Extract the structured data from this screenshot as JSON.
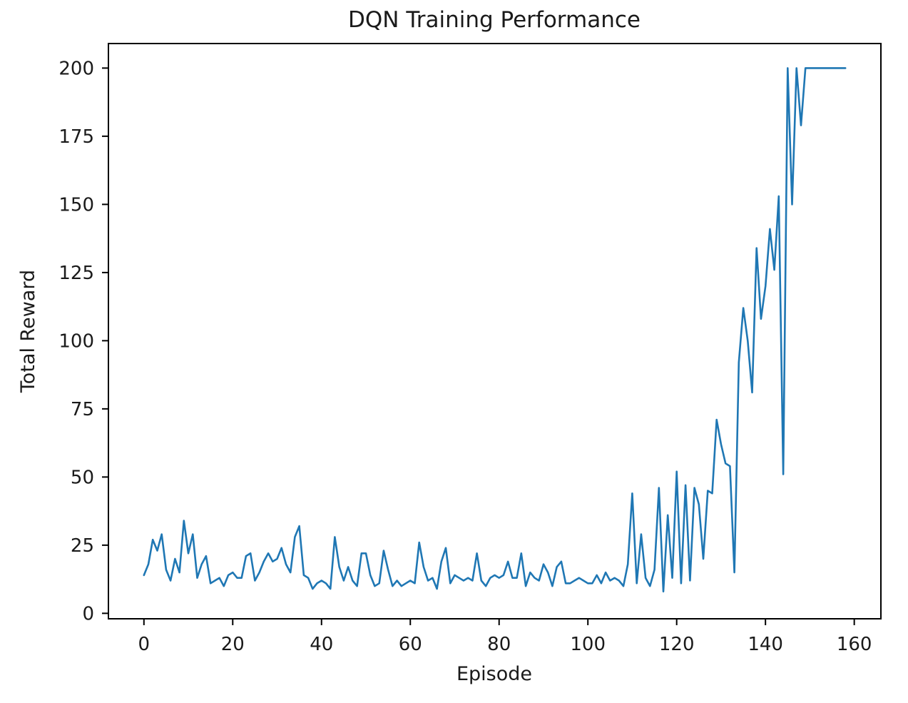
{
  "chart_data": {
    "type": "line",
    "title": "DQN Training Performance",
    "xlabel": "Episode",
    "ylabel": "Total Reward",
    "xlim": [
      -8,
      166
    ],
    "ylim": [
      -2,
      209
    ],
    "xticks": [
      0,
      20,
      40,
      60,
      80,
      100,
      120,
      140,
      160
    ],
    "yticks": [
      0,
      25,
      50,
      75,
      100,
      125,
      150,
      175,
      200
    ],
    "grid": false,
    "legend": "none",
    "series": [
      {
        "color": "#1f77b4",
        "x": [
          0,
          1,
          2,
          3,
          4,
          5,
          6,
          7,
          8,
          9,
          10,
          11,
          12,
          13,
          14,
          15,
          16,
          17,
          18,
          19,
          20,
          21,
          22,
          23,
          24,
          25,
          26,
          27,
          28,
          29,
          30,
          31,
          32,
          33,
          34,
          35,
          36,
          37,
          38,
          39,
          40,
          41,
          42,
          43,
          44,
          45,
          46,
          47,
          48,
          49,
          50,
          51,
          52,
          53,
          54,
          55,
          56,
          57,
          58,
          59,
          60,
          61,
          62,
          63,
          64,
          65,
          66,
          67,
          68,
          69,
          70,
          71,
          72,
          73,
          74,
          75,
          76,
          77,
          78,
          79,
          80,
          81,
          82,
          83,
          84,
          85,
          86,
          87,
          88,
          89,
          90,
          91,
          92,
          93,
          94,
          95,
          96,
          97,
          98,
          99,
          100,
          101,
          102,
          103,
          104,
          105,
          106,
          107,
          108,
          109,
          110,
          111,
          112,
          113,
          114,
          115,
          116,
          117,
          118,
          119,
          120,
          121,
          122,
          123,
          124,
          125,
          126,
          127,
          128,
          129,
          130,
          131,
          132,
          133,
          134,
          135,
          136,
          137,
          138,
          139,
          140,
          141,
          142,
          143,
          144,
          145,
          146,
          147,
          148,
          149,
          150,
          151,
          152,
          153,
          154,
          155,
          156,
          157,
          158
        ],
        "y": [
          14,
          18,
          27,
          23,
          29,
          16,
          12,
          20,
          15,
          34,
          22,
          29,
          13,
          18,
          21,
          11,
          12,
          13,
          10,
          14,
          15,
          13,
          13,
          21,
          22,
          12,
          15,
          19,
          22,
          19,
          20,
          24,
          18,
          15,
          28,
          32,
          14,
          13,
          9,
          11,
          12,
          11,
          9,
          28,
          17,
          12,
          17,
          12,
          10,
          22,
          22,
          14,
          10,
          11,
          23,
          16,
          10,
          12,
          10,
          11,
          12,
          11,
          26,
          17,
          12,
          13,
          9,
          19,
          24,
          11,
          14,
          13,
          12,
          13,
          12,
          22,
          12,
          10,
          13,
          14,
          13,
          14,
          19,
          13,
          13,
          22,
          10,
          15,
          13,
          12,
          18,
          15,
          10,
          17,
          19,
          11,
          11,
          12,
          13,
          12,
          11,
          11,
          14,
          11,
          15,
          12,
          13,
          12,
          10,
          18,
          44,
          11,
          29,
          13,
          10,
          16,
          46,
          8,
          36,
          13,
          52,
          11,
          47,
          12,
          46,
          40,
          20,
          45,
          44,
          71,
          62,
          55,
          54,
          15,
          92,
          112,
          100,
          81,
          134,
          108,
          120,
          141,
          126,
          153,
          51,
          200,
          150,
          200,
          179,
          200,
          200,
          200,
          200,
          200,
          200,
          200,
          200,
          200,
          200
        ]
      }
    ]
  }
}
